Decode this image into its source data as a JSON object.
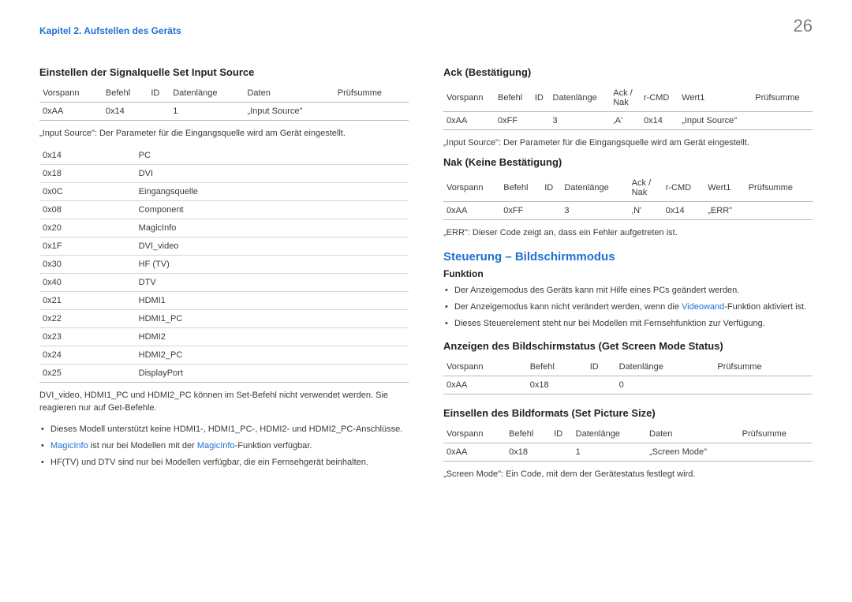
{
  "breadcrumb": "Kapitel 2. Aufstellen des Geräts",
  "page_number": "26",
  "left": {
    "h_set_input": "Einstellen der Signalquelle  Set Input Source",
    "tbl1": {
      "headers": [
        "Vorspann",
        "Befehl",
        "ID",
        "Datenlänge",
        "Daten",
        "Prüfsumme"
      ],
      "row": [
        "0xAA",
        "0x14",
        "",
        "1",
        "„Input Source\"",
        ""
      ]
    },
    "note_input_src": "„Input Source\": Der Parameter für die Eingangsquelle wird am Gerät eingestellt.",
    "tbl2_rows": [
      [
        "0x14",
        "PC"
      ],
      [
        "0x18",
        "DVI"
      ],
      [
        "0x0C",
        "Eingangsquelle"
      ],
      [
        "0x08",
        "Component"
      ],
      [
        "0x20",
        "MagicInfo"
      ],
      [
        "0x1F",
        "DVI_video"
      ],
      [
        "0x30",
        "HF (TV)"
      ],
      [
        "0x40",
        "DTV"
      ],
      [
        "0x21",
        "HDMI1"
      ],
      [
        "0x22",
        "HDMI1_PC"
      ],
      [
        "0x23",
        "HDMI2"
      ],
      [
        "0x24",
        "HDMI2_PC"
      ],
      [
        "0x25",
        "DisplayPort"
      ]
    ],
    "note_dvi": "DVI_video, HDMI1_PC und HDMI2_PC können im Set-Befehl nicht verwendet werden. Sie reagieren nur auf Get-Befehle.",
    "b1": "Dieses Modell unterstützt keine HDMI1-, HDMI1_PC-, HDMI2- und HDMI2_PC-Anschlüsse.",
    "b2a": "MagicInfo",
    "b2b": " ist nur bei Modellen mit der ",
    "b2c": "MagicInfo",
    "b2d": "-Funktion verfügbar.",
    "b3": "HF(TV) und DTV sind nur bei Modellen verfügbar, die ein Fernsehgerät beinhalten."
  },
  "right": {
    "h_ack": "Ack (Bestätigung)",
    "ack_headers": [
      "Vorspann",
      "Befehl",
      "ID",
      "Datenlänge",
      "Ack / Nak",
      "r-CMD",
      "Wert1",
      "Prüfsumme"
    ],
    "ack_row": [
      "0xAA",
      "0xFF",
      "",
      "3",
      "‚A'",
      "0x14",
      "„Input Source\"",
      ""
    ],
    "note_input_src": "„Input Source\": Der Parameter für die Eingangsquelle wird am Gerät eingestellt.",
    "h_nak": "Nak (Keine Bestätigung)",
    "nak_row": [
      "0xAA",
      "0xFF",
      "",
      "3",
      "‚N'",
      "0x14",
      "„ERR\"",
      ""
    ],
    "note_err": "„ERR\": Dieser Code zeigt an, dass ein Fehler aufgetreten ist.",
    "h_mode": "Steuerung – Bildschirmmodus",
    "h_funktion": "Funktion",
    "f1a": "Der Anzeigemodus des Geräts kann mit Hilfe eines PCs geändert werden.",
    "f2a": "Der Anzeigemodus kann nicht verändert werden, wenn die ",
    "f2b": "Videowand",
    "f2c": "-Funktion aktiviert ist.",
    "f3": "Dieses Steuerelement steht nur bei Modellen mit Fernsehfunktion zur Verfügung.",
    "h_get": "Anzeigen des Bildschirmstatus (Get Screen Mode Status)",
    "get_headers": [
      "Vorspann",
      "Befehl",
      "ID",
      "Datenlänge",
      "Prüfsumme"
    ],
    "get_row": [
      "0xAA",
      "0x18",
      "",
      "0",
      ""
    ],
    "h_set": "Einsellen des Bildformats (Set Picture Size)",
    "set_headers": [
      "Vorspann",
      "Befehl",
      "ID",
      "Datenlänge",
      "Daten",
      "Prüfsumme"
    ],
    "set_row": [
      "0xAA",
      "0x18",
      "",
      "1",
      "„Screen Mode\"",
      ""
    ],
    "note_screen": "„Screen Mode\": Ein Code, mit dem der Gerätestatus festlegt wird."
  }
}
